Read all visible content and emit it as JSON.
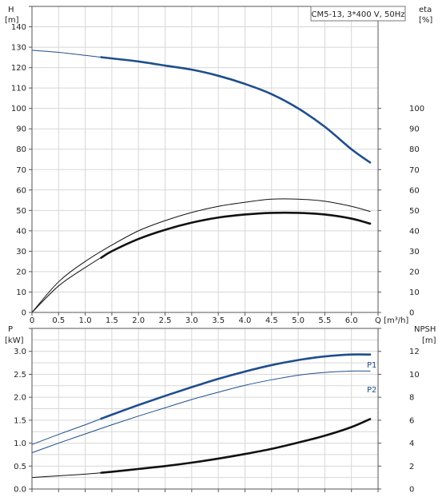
{
  "legend_text": "CM5-13, 3*400 V, 50Hz",
  "colors": {
    "blue": "#1f4e8c",
    "black": "#111111",
    "grid": "#d7d7d7"
  },
  "chart_data": [
    {
      "type": "line",
      "panel": "top",
      "xlabel": "Q [m³/h]",
      "ylabel_left": "H\n[m]",
      "ylabel_right": "eta\n[%]",
      "xlim": [
        0,
        6.5
      ],
      "ylim_left": [
        0,
        150
      ],
      "ylim_right": [
        0,
        150
      ],
      "x_ticks": [
        "0",
        "0.5",
        "1.0",
        "1.5",
        "2.0",
        "2.5",
        "3.0",
        "3.5",
        "4.0",
        "4.5",
        "5.0",
        "5.5",
        "6.0",
        "Q [m³/h]"
      ],
      "left_ticks": [
        "0",
        "10",
        "20",
        "30",
        "40",
        "50",
        "60",
        "70",
        "80",
        "90",
        "100",
        "110",
        "120",
        "130",
        "140"
      ],
      "right_ticks": [
        "0",
        "10",
        "20",
        "30",
        "40",
        "50",
        "60",
        "70",
        "80",
        "90",
        "100"
      ],
      "grid": true,
      "legend": "top-right",
      "series": [
        {
          "key": "H",
          "axis": "left",
          "color": "blue",
          "highlight_from": 1.3,
          "x": [
            0,
            0.5,
            1.0,
            1.5,
            2.0,
            2.5,
            3.0,
            3.5,
            4.0,
            4.5,
            5.0,
            5.5,
            6.0,
            6.35
          ],
          "y": [
            128.5,
            127.5,
            126,
            124.5,
            123,
            121,
            119,
            116,
            112,
            107,
            100,
            91,
            80,
            73.5
          ]
        },
        {
          "key": "eta-upper",
          "axis": "right",
          "color": "black",
          "x": [
            0,
            0.5,
            1.0,
            1.5,
            2.0,
            2.5,
            3.0,
            3.5,
            4.0,
            4.5,
            5.0,
            5.5,
            6.0,
            6.35
          ],
          "y": [
            0,
            15,
            25,
            33,
            40,
            45,
            49,
            52,
            54,
            55.5,
            55.5,
            54.5,
            52,
            49.5
          ]
        },
        {
          "key": "eta-lower",
          "axis": "right",
          "color": "black",
          "highlight_from": 1.3,
          "x": [
            0,
            0.5,
            1.0,
            1.5,
            2.0,
            2.5,
            3.0,
            3.5,
            4.0,
            4.5,
            5.0,
            5.5,
            6.0,
            6.35
          ],
          "y": [
            0,
            13,
            22,
            30,
            36,
            40.5,
            44,
            46.5,
            48,
            48.8,
            48.8,
            48,
            46,
            43.5
          ]
        }
      ]
    },
    {
      "type": "line",
      "panel": "bottom",
      "ylabel_left": "P\n[kW]",
      "ylabel_right": "NPSH\n[m]",
      "xlim": [
        0,
        6.5
      ],
      "ylim_left": [
        0,
        3.5
      ],
      "ylim_right": [
        0,
        14
      ],
      "left_ticks": [
        "0.0",
        "0.5",
        "1.0",
        "1.5",
        "2.0",
        "2.5",
        "3.0"
      ],
      "right_ticks": [
        "0",
        "2",
        "4",
        "6",
        "8",
        "10",
        "12"
      ],
      "grid": true,
      "series": [
        {
          "name": "P1",
          "key": "P1",
          "axis": "left",
          "color": "blue",
          "highlight_from": 1.3,
          "x": [
            0,
            0.5,
            1.0,
            1.5,
            2.0,
            2.5,
            3.0,
            3.5,
            4.0,
            4.5,
            5.0,
            5.5,
            6.0,
            6.35
          ],
          "y": [
            0.97,
            1.19,
            1.4,
            1.62,
            1.83,
            2.03,
            2.22,
            2.4,
            2.56,
            2.7,
            2.81,
            2.89,
            2.93,
            2.93
          ]
        },
        {
          "name": "P2",
          "key": "P2",
          "axis": "left",
          "color": "blue",
          "x": [
            0,
            0.5,
            1.0,
            1.5,
            2.0,
            2.5,
            3.0,
            3.5,
            4.0,
            4.5,
            5.0,
            5.5,
            6.0,
            6.35
          ],
          "y": [
            0.79,
            1.0,
            1.2,
            1.4,
            1.59,
            1.77,
            1.95,
            2.11,
            2.26,
            2.38,
            2.48,
            2.54,
            2.57,
            2.57
          ]
        },
        {
          "key": "NPSH",
          "axis": "right",
          "color": "black",
          "highlight_from": 1.3,
          "x": [
            0,
            0.5,
            1.0,
            1.5,
            2.0,
            2.5,
            3.0,
            3.5,
            4.0,
            4.5,
            5.0,
            5.5,
            6.0,
            6.35
          ],
          "y": [
            1.0,
            1.15,
            1.3,
            1.5,
            1.75,
            2.0,
            2.3,
            2.65,
            3.05,
            3.5,
            4.05,
            4.65,
            5.4,
            6.1
          ]
        }
      ]
    }
  ]
}
